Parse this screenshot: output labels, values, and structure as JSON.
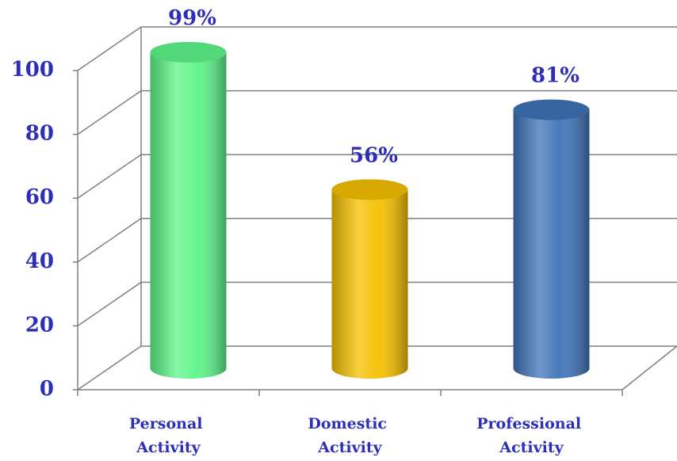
{
  "chart_data": {
    "type": "bar",
    "categories": [
      "Personal Activity",
      "Domestic Activity",
      "Professional Activity"
    ],
    "values": [
      99,
      56,
      81
    ],
    "value_labels": [
      "99%",
      "56%",
      "81%"
    ],
    "colors": [
      "#5ef58a",
      "#f5c000",
      "#3f74b8"
    ],
    "ylim": [
      0,
      100
    ],
    "yticks": [
      0,
      20,
      40,
      60,
      80,
      100
    ],
    "grid": true
  }
}
